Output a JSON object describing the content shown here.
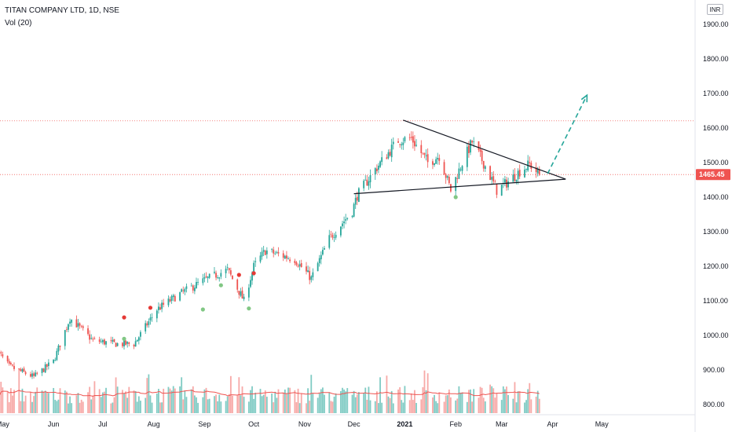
{
  "header": {
    "title": "TITAN COMPANY LTD, 1D, NSE",
    "volume_label": "Vol (20)"
  },
  "currency": "INR",
  "current_price_label": "1465.45",
  "colors": {
    "up": "#26a69a",
    "down": "#ef5350",
    "volume_up": "#80cbc4",
    "volume_down": "#f7a9a7",
    "volume_ma": "#ef5350",
    "trendline": "#131722",
    "projection": "#26a69a",
    "price_line": "#ef5350",
    "resistance_line": "#ef5350",
    "marker_green": "#81c784",
    "marker_red": "#e53935"
  },
  "chart_data": {
    "type": "candlestick",
    "symbol": "TITAN COMPANY LTD",
    "interval": "1D",
    "exchange": "NSE",
    "y_axis_labels": [
      "1900.00",
      "1800.00",
      "1700.00",
      "1600.00",
      "1500.00",
      "1400.00",
      "1300.00",
      "1200.00",
      "1100.00",
      "1000.00",
      "900.00",
      "800.00"
    ],
    "y_ticks": [
      1900,
      1800,
      1700,
      1600,
      1500,
      1400,
      1300,
      1200,
      1100,
      1000,
      900,
      800
    ],
    "x_axis_labels": [
      "May",
      "Jun",
      "Jul",
      "Aug",
      "Sep",
      "Oct",
      "Nov",
      "Dec",
      "2021",
      "Feb",
      "Mar",
      "Apr",
      "May"
    ],
    "x_axis_bold": "2021",
    "price_trend_anchors": [
      {
        "date": "2020-04-27",
        "close": 960
      },
      {
        "date": "2020-05-05",
        "close": 910
      },
      {
        "date": "2020-05-20",
        "close": 880
      },
      {
        "date": "2020-06-01",
        "close": 925
      },
      {
        "date": "2020-06-11",
        "close": 1050
      },
      {
        "date": "2020-06-25",
        "close": 985
      },
      {
        "date": "2020-07-10",
        "close": 975
      },
      {
        "date": "2020-07-20",
        "close": 975
      },
      {
        "date": "2020-08-03",
        "close": 1075
      },
      {
        "date": "2020-08-17",
        "close": 1120
      },
      {
        "date": "2020-09-01",
        "close": 1160
      },
      {
        "date": "2020-09-15",
        "close": 1190
      },
      {
        "date": "2020-09-25",
        "close": 1100
      },
      {
        "date": "2020-10-01",
        "close": 1200
      },
      {
        "date": "2020-10-08",
        "close": 1245
      },
      {
        "date": "2020-10-26",
        "close": 1220
      },
      {
        "date": "2020-11-05",
        "close": 1165
      },
      {
        "date": "2020-11-16",
        "close": 1280
      },
      {
        "date": "2020-11-30",
        "close": 1360
      },
      {
        "date": "2020-12-03",
        "close": 1405
      },
      {
        "date": "2020-12-14",
        "close": 1480
      },
      {
        "date": "2020-12-28",
        "close": 1565
      },
      {
        "date": "2021-01-05",
        "close": 1570
      },
      {
        "date": "2021-01-15",
        "close": 1500
      },
      {
        "date": "2021-01-22",
        "close": 1520
      },
      {
        "date": "2021-01-29",
        "close": 1420
      },
      {
        "date": "2021-02-05",
        "close": 1500
      },
      {
        "date": "2021-02-11",
        "close": 1560
      },
      {
        "date": "2021-02-19",
        "close": 1490
      },
      {
        "date": "2021-02-26",
        "close": 1420
      },
      {
        "date": "2021-03-05",
        "close": 1445
      },
      {
        "date": "2021-03-12",
        "close": 1475
      },
      {
        "date": "2021-03-18",
        "close": 1495
      },
      {
        "date": "2021-03-24",
        "close": 1465.45
      }
    ],
    "volume_axis": {
      "values": "not printed"
    },
    "annotations": {
      "triangle_upper": {
        "from": {
          "date": "2020-12-31",
          "price": 1623
        },
        "to": {
          "date": "2021-04-09",
          "price": 1452
        }
      },
      "triangle_lower": {
        "from": {
          "date": "2020-12-01",
          "price": 1410
        },
        "to": {
          "date": "2021-04-09",
          "price": 1452
        }
      },
      "projection_arrow": {
        "from": {
          "date": "2021-03-29",
          "price": 1468
        },
        "to": {
          "date": "2021-04-22",
          "price": 1695
        }
      },
      "resistance_level": 1621,
      "current_price": 1465.45,
      "green_markers": [
        {
          "date": "2020-07-14",
          "price": 990
        },
        {
          "date": "2020-08-31",
          "price": 1075
        },
        {
          "date": "2020-09-11",
          "price": 1145
        },
        {
          "date": "2020-09-28",
          "price": 1078
        },
        {
          "date": "2021-02-01",
          "price": 1400
        }
      ],
      "red_markers": [
        {
          "date": "2020-07-14",
          "price": 1052
        },
        {
          "date": "2020-07-30",
          "price": 1080
        },
        {
          "date": "2020-09-22",
          "price": 1175
        },
        {
          "date": "2020-10-01",
          "price": 1180
        }
      ]
    },
    "grid": false,
    "legend": "none"
  }
}
